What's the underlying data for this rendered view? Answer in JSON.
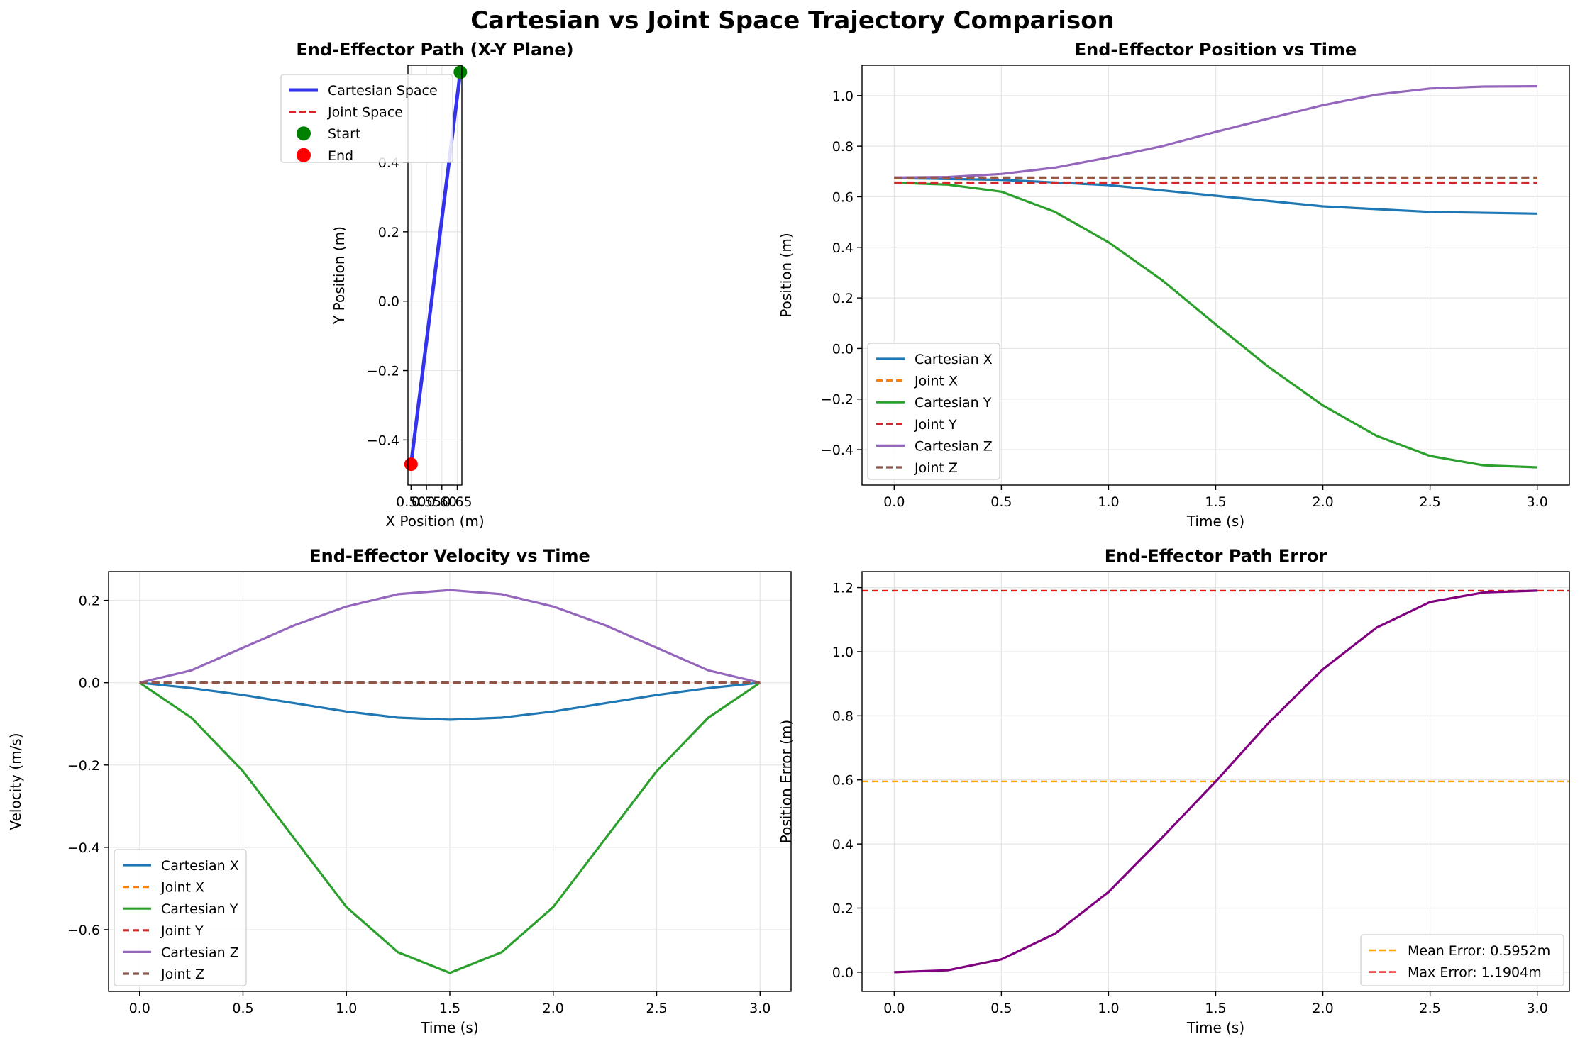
{
  "suptitle": "Cartesian vs Joint Space Trajectory Comparison",
  "colors": {
    "blue": "#1f77b4",
    "orange": "#ff7f0e",
    "green": "#2ca02c",
    "red": "#d62728",
    "purple": "#9467bd",
    "brown": "#8c564b",
    "path_blue": "#3333ee",
    "start_green": "#008000",
    "end_red": "#ff0000",
    "error_purple": "#800080",
    "mean_orange": "#ffa500",
    "max_red": "#e31a1c"
  },
  "chart_data": [
    {
      "id": "xy",
      "type": "line",
      "title": "End-Effector Path (X-Y Plane)",
      "xlabel": "X Position (m)",
      "ylabel": "Y Position (m)",
      "xlim": [
        0.49,
        0.665
      ],
      "ylim": [
        -0.53,
        0.68
      ],
      "xticks": [
        0.5,
        0.55,
        0.6,
        0.65
      ],
      "xtick_labels": [
        "0.50",
        "0.55",
        "0.60",
        "0.65"
      ],
      "yticks": [
        -0.4,
        -0.2,
        0.0,
        0.2,
        0.4
      ],
      "ytick_labels": [
        "−0.4",
        "−0.2",
        "0.0",
        "0.2",
        "0.4"
      ],
      "grid": true,
      "legend": "upper-left",
      "series": [
        {
          "name": "Cartesian Space",
          "style": "solid",
          "color": "#3333ee",
          "x": [
            0.66,
            0.5
          ],
          "y": [
            0.66,
            -0.47
          ]
        },
        {
          "name": "Joint Space",
          "style": "dashed",
          "color": "#d62728",
          "x": [
            0.66,
            0.66
          ],
          "y": [
            0.66,
            0.66
          ]
        }
      ],
      "markers": [
        {
          "name": "Start",
          "color": "#008000",
          "x": 0.66,
          "y": 0.66
        },
        {
          "name": "End",
          "color": "#ff0000",
          "x": 0.5,
          "y": -0.47
        }
      ]
    },
    {
      "id": "pos",
      "type": "line",
      "title": "End-Effector Position vs Time",
      "xlabel": "Time (s)",
      "ylabel": "Position (m)",
      "xlim": [
        -0.15,
        3.15
      ],
      "ylim": [
        -0.54,
        1.12
      ],
      "xticks": [
        0,
        0.5,
        1.0,
        1.5,
        2.0,
        2.5,
        3.0
      ],
      "xtick_labels": [
        "0.0",
        "0.5",
        "1.0",
        "1.5",
        "2.0",
        "2.5",
        "3.0"
      ],
      "yticks": [
        -0.4,
        -0.2,
        0.0,
        0.2,
        0.4,
        0.6,
        0.8,
        1.0
      ],
      "ytick_labels": [
        "−0.4",
        "−0.2",
        "0.0",
        "0.2",
        "0.4",
        "0.6",
        "0.8",
        "1.0"
      ],
      "grid": true,
      "legend": "lower-left",
      "series": [
        {
          "name": "Cartesian X",
          "style": "solid",
          "color": "#1f77b4",
          "x": [
            0,
            0.5,
            1.0,
            1.5,
            2.0,
            2.5,
            3.0
          ],
          "y": [
            0.674,
            0.667,
            0.646,
            0.604,
            0.562,
            0.54,
            0.533
          ]
        },
        {
          "name": "Joint X",
          "style": "dashed",
          "color": "#ff7f0e",
          "x": [
            0,
            3.0
          ],
          "y": [
            0.674,
            0.674
          ]
        },
        {
          "name": "Cartesian Y",
          "style": "solid",
          "color": "#2ca02c",
          "x": [
            0,
            0.25,
            0.5,
            0.75,
            1.0,
            1.25,
            1.5,
            1.75,
            2.0,
            2.25,
            2.5,
            2.75,
            3.0
          ],
          "y": [
            0.656,
            0.648,
            0.62,
            0.54,
            0.42,
            0.27,
            0.095,
            -0.075,
            -0.225,
            -0.345,
            -0.425,
            -0.462,
            -0.47
          ]
        },
        {
          "name": "Joint Y",
          "style": "dashed",
          "color": "#d62728",
          "x": [
            0,
            3.0
          ],
          "y": [
            0.656,
            0.656
          ]
        },
        {
          "name": "Cartesian Z",
          "style": "solid",
          "color": "#9467bd",
          "x": [
            0,
            0.25,
            0.5,
            0.75,
            1.0,
            1.25,
            1.5,
            1.75,
            2.0,
            2.25,
            2.5,
            2.75,
            3.0
          ],
          "y": [
            0.676,
            0.678,
            0.69,
            0.715,
            0.755,
            0.8,
            0.856,
            0.91,
            0.962,
            1.004,
            1.028,
            1.036,
            1.037
          ]
        },
        {
          "name": "Joint Z",
          "style": "dashed",
          "color": "#8c564b",
          "x": [
            0,
            3.0
          ],
          "y": [
            0.676,
            0.676
          ]
        }
      ]
    },
    {
      "id": "vel",
      "type": "line",
      "title": "End-Effector Velocity vs Time",
      "xlabel": "Time (s)",
      "ylabel": "Velocity (m/s)",
      "xlim": [
        -0.15,
        3.15
      ],
      "ylim": [
        -0.75,
        0.27
      ],
      "xticks": [
        0,
        0.5,
        1.0,
        1.5,
        2.0,
        2.5,
        3.0
      ],
      "xtick_labels": [
        "0.0",
        "0.5",
        "1.0",
        "1.5",
        "2.0",
        "2.5",
        "3.0"
      ],
      "yticks": [
        -0.6,
        -0.4,
        -0.2,
        0.0,
        0.2
      ],
      "ytick_labels": [
        "−0.6",
        "−0.4",
        "−0.2",
        "0.0",
        "0.2"
      ],
      "grid": true,
      "legend": "lower-left",
      "series": [
        {
          "name": "Cartesian X",
          "style": "solid",
          "color": "#1f77b4",
          "x": [
            0,
            0.25,
            0.5,
            0.75,
            1.0,
            1.25,
            1.5,
            1.75,
            2.0,
            2.25,
            2.5,
            2.75,
            3.0
          ],
          "y": [
            0,
            -0.013,
            -0.03,
            -0.05,
            -0.07,
            -0.085,
            -0.09,
            -0.085,
            -0.07,
            -0.05,
            -0.03,
            -0.013,
            0
          ]
        },
        {
          "name": "Joint X",
          "style": "dashed",
          "color": "#ff7f0e",
          "x": [
            0,
            3.0
          ],
          "y": [
            0,
            0
          ]
        },
        {
          "name": "Cartesian Y",
          "style": "solid",
          "color": "#2ca02c",
          "x": [
            0,
            0.25,
            0.5,
            0.75,
            1.0,
            1.25,
            1.5,
            1.75,
            2.0,
            2.25,
            2.5,
            2.75,
            3.0
          ],
          "y": [
            0,
            -0.085,
            -0.215,
            -0.38,
            -0.545,
            -0.655,
            -0.705,
            -0.655,
            -0.545,
            -0.38,
            -0.215,
            -0.085,
            0
          ]
        },
        {
          "name": "Joint Y",
          "style": "dashed",
          "color": "#d62728",
          "x": [
            0,
            3.0
          ],
          "y": [
            0,
            0
          ]
        },
        {
          "name": "Cartesian Z",
          "style": "solid",
          "color": "#9467bd",
          "x": [
            0,
            0.25,
            0.5,
            0.75,
            1.0,
            1.25,
            1.5,
            1.75,
            2.0,
            2.25,
            2.5,
            2.75,
            3.0
          ],
          "y": [
            0,
            0.03,
            0.085,
            0.14,
            0.185,
            0.215,
            0.225,
            0.215,
            0.185,
            0.14,
            0.085,
            0.03,
            0
          ]
        },
        {
          "name": "Joint Z",
          "style": "dashed",
          "color": "#8c564b",
          "x": [
            0,
            3.0
          ],
          "y": [
            0,
            0
          ]
        }
      ]
    },
    {
      "id": "err",
      "type": "line",
      "title": "End-Effector Path Error",
      "xlabel": "Time (s)",
      "ylabel": "Position Error (m)",
      "xlim": [
        -0.15,
        3.15
      ],
      "ylim": [
        -0.06,
        1.25
      ],
      "xticks": [
        0,
        0.5,
        1.0,
        1.5,
        2.0,
        2.5,
        3.0
      ],
      "xtick_labels": [
        "0.0",
        "0.5",
        "1.0",
        "1.5",
        "2.0",
        "2.5",
        "3.0"
      ],
      "yticks": [
        0.0,
        0.2,
        0.4,
        0.6,
        0.8,
        1.0,
        1.2
      ],
      "ytick_labels": [
        "0.0",
        "0.2",
        "0.4",
        "0.6",
        "0.8",
        "1.0",
        "1.2"
      ],
      "grid": true,
      "legend": "lower-right",
      "series": [
        {
          "name": "",
          "style": "solid",
          "color": "#800080",
          "x": [
            0,
            0.25,
            0.5,
            0.75,
            1.0,
            1.25,
            1.5,
            1.75,
            2.0,
            2.25,
            2.5,
            2.75,
            3.0
          ],
          "y": [
            0,
            0.006,
            0.04,
            0.12,
            0.25,
            0.42,
            0.595,
            0.78,
            0.945,
            1.075,
            1.155,
            1.185,
            1.1904
          ]
        }
      ],
      "hlines": [
        {
          "name": "Mean Error: 0.5952m",
          "style": "dashed",
          "color": "#ffa500",
          "y": 0.5952
        },
        {
          "name": "Max Error: 1.1904m",
          "style": "dashed",
          "color": "#e31a1c",
          "y": 1.1904
        }
      ]
    }
  ]
}
